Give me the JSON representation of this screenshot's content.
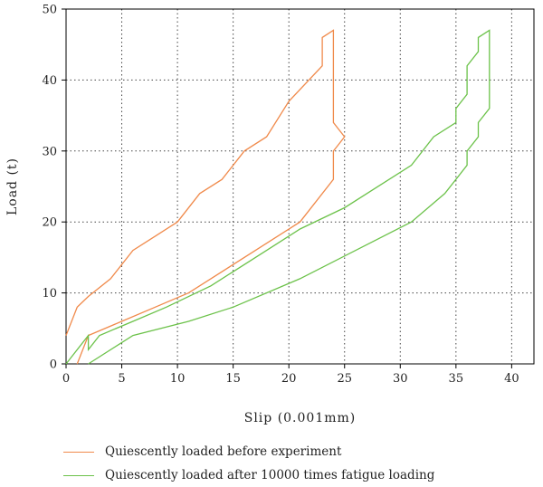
{
  "chart_data": {
    "type": "line",
    "xlabel": "Slip (0.001mm)",
    "ylabel": "Load (t)",
    "xlim": [
      0,
      42
    ],
    "ylim": [
      0,
      50
    ],
    "xticks": [
      0,
      5,
      10,
      15,
      20,
      25,
      30,
      35,
      40
    ],
    "yticks": [
      0,
      10,
      20,
      30,
      40,
      50
    ],
    "grid": true,
    "legend_position": "bottom",
    "series": [
      {
        "name": "Quiescently loaded before experiment",
        "color": "#f08a4b",
        "points": [
          [
            0,
            4
          ],
          [
            1,
            8
          ],
          [
            2,
            9.5
          ],
          [
            4,
            12
          ],
          [
            6,
            16
          ],
          [
            8,
            18
          ],
          [
            10,
            20
          ],
          [
            12,
            24
          ],
          [
            14,
            26
          ],
          [
            16,
            30
          ],
          [
            18,
            32
          ],
          [
            20,
            37
          ],
          [
            23,
            42
          ],
          [
            23,
            46
          ],
          [
            24,
            47
          ],
          [
            24,
            34
          ],
          [
            25,
            32
          ],
          [
            24.5,
            31
          ],
          [
            24,
            30
          ],
          [
            24,
            26
          ],
          [
            21,
            20
          ],
          [
            17,
            16
          ],
          [
            13,
            12
          ],
          [
            11,
            10
          ],
          [
            8,
            8
          ],
          [
            5,
            6
          ],
          [
            2,
            4
          ],
          [
            1,
            0
          ]
        ]
      },
      {
        "name": "Quiescently loaded after 10000 times fatigue loading",
        "color": "#6cc24a",
        "points": [
          [
            0,
            0
          ],
          [
            2,
            4
          ],
          [
            2,
            2
          ],
          [
            3,
            4
          ],
          [
            6,
            6
          ],
          [
            9,
            8
          ],
          [
            13,
            11
          ],
          [
            17,
            15
          ],
          [
            21,
            19
          ],
          [
            25,
            22
          ],
          [
            31,
            28
          ],
          [
            33,
            32
          ],
          [
            35,
            34
          ],
          [
            35,
            36
          ],
          [
            36,
            38
          ],
          [
            36,
            42
          ],
          [
            37,
            44
          ],
          [
            37,
            46
          ],
          [
            38,
            47
          ],
          [
            38,
            36
          ],
          [
            37,
            34
          ],
          [
            37,
            32
          ],
          [
            36,
            30
          ],
          [
            36,
            28
          ],
          [
            34,
            24
          ],
          [
            31,
            20
          ],
          [
            21,
            12
          ],
          [
            15,
            8
          ],
          [
            11,
            6
          ],
          [
            6,
            4
          ],
          [
            2,
            0
          ]
        ]
      }
    ]
  }
}
